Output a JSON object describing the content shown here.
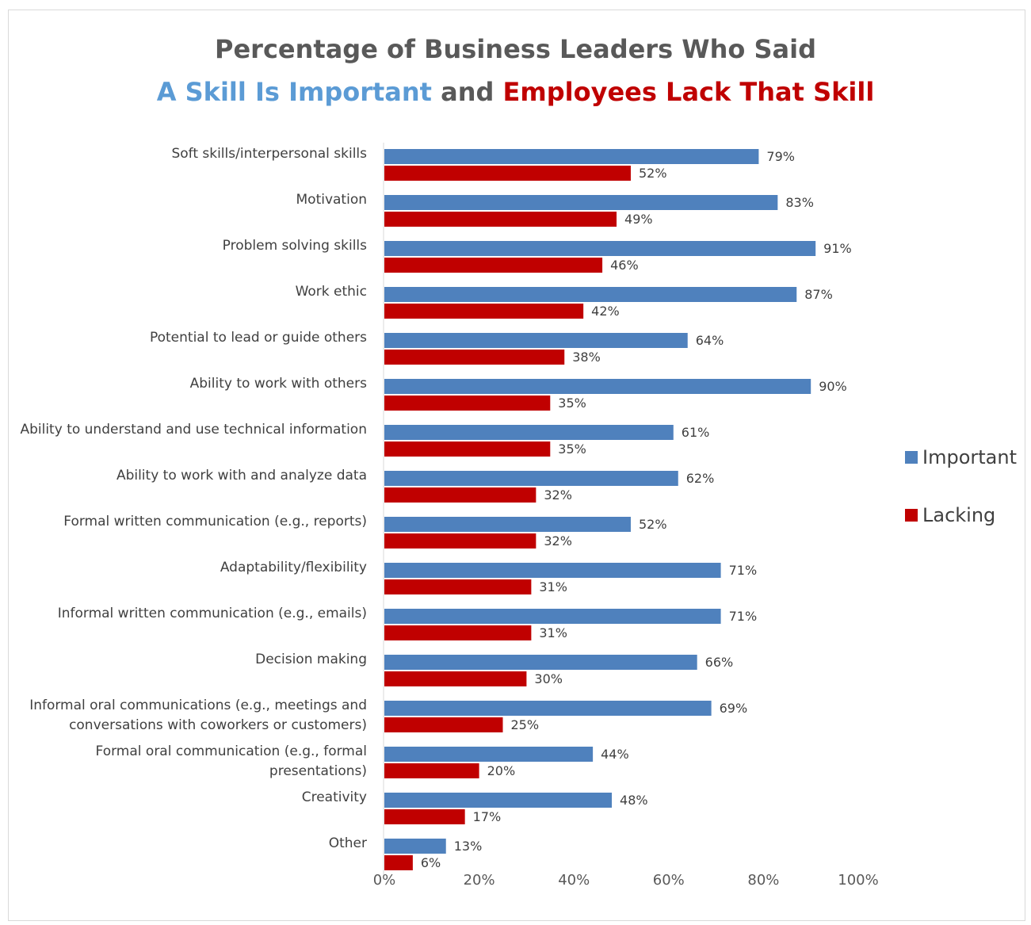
{
  "title": {
    "line1": "Percentage of Business Leaders Who Said",
    "line2_part1": "A Skill Is Important",
    "line2_part2": " and ",
    "line2_part3": "Employees Lack That Skill"
  },
  "colors": {
    "important": "#4f81bd",
    "lacking": "#c00000"
  },
  "legend": {
    "important": "Important",
    "lacking": "Lacking"
  },
  "chart_data": {
    "type": "bar",
    "orientation": "horizontal",
    "categories": [
      [
        "Soft skills/interpersonal skills"
      ],
      [
        "Motivation"
      ],
      [
        "Problem solving skills"
      ],
      [
        "Work ethic"
      ],
      [
        "Potential to lead or guide others"
      ],
      [
        "Ability to work with others"
      ],
      [
        "Ability to understand and use technical information"
      ],
      [
        "Ability to work with and analyze data"
      ],
      [
        "Formal written communication (e.g., reports)"
      ],
      [
        "Adaptability/flexibility"
      ],
      [
        "Informal written communication (e.g., emails)"
      ],
      [
        "Decision making"
      ],
      [
        "Informal oral communications (e.g., meetings and",
        "conversations with coworkers or customers)"
      ],
      [
        "Formal oral communication (e.g., formal",
        "presentations)"
      ],
      [
        "Creativity"
      ],
      [
        "Other"
      ]
    ],
    "series": [
      {
        "name": "Important",
        "values": [
          79,
          83,
          91,
          87,
          64,
          90,
          61,
          62,
          52,
          71,
          71,
          66,
          69,
          44,
          48,
          13
        ]
      },
      {
        "name": "Lacking",
        "values": [
          52,
          49,
          46,
          42,
          38,
          35,
          35,
          32,
          32,
          31,
          31,
          30,
          25,
          20,
          17,
          6
        ]
      }
    ],
    "value_suffix": "%",
    "xlim": [
      0,
      100
    ],
    "xticks": [
      "0%",
      "20%",
      "40%",
      "60%",
      "80%",
      "100%"
    ],
    "legend_position": "right",
    "grid": false
  }
}
